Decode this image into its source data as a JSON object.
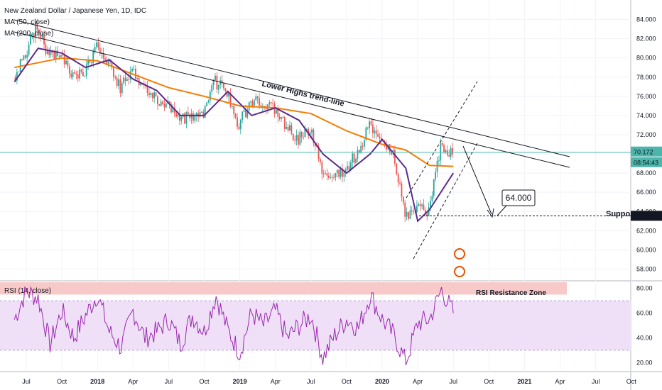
{
  "header": {
    "symbol_title": "New Zealand Dollar / Japanese Yen, 1D, IDC",
    "ma50_label": "MA (50, close)",
    "ma200_label": "MA (200, close)",
    "rsi_label": "RSI (14, close)"
  },
  "colors": {
    "candle_up": "#26a69a",
    "candle_down": "#ef5350",
    "ma50": "#5b2a8c",
    "ma200": "#f57c00",
    "rsi_line": "#9c27b0",
    "rsi_band": "#efe0f7",
    "resistance_zone": "#f8c9c9",
    "price_line": "#4db6ac"
  },
  "price_axis": {
    "ticks": [
      "84.000",
      "82.000",
      "80.000",
      "78.000",
      "76.000",
      "74.000",
      "72.000",
      "70.000",
      "68.000",
      "66.000",
      "64.000",
      "62.000",
      "60.000",
      "58.000"
    ],
    "current_price": "70.172",
    "countdown": "08:54:43",
    "support_price": "63.550"
  },
  "rsi_axis": {
    "ticks": [
      "80.00",
      "60.00",
      "40.00",
      "20.00"
    ]
  },
  "time_axis": {
    "labels": [
      "Jul",
      "Oct",
      "2018",
      "Apr",
      "Jul",
      "Oct",
      "2019",
      "Apr",
      "Jul",
      "Oct",
      "2020",
      "Apr",
      "Jul",
      "Oct",
      "2021",
      "Apr",
      "Jul",
      "Oct"
    ],
    "bold": [
      "2018",
      "2019",
      "2020",
      "2021"
    ]
  },
  "annotations": {
    "trendline_label": "Lower Highs trend-line",
    "support_label": "Support",
    "target_callout": "64.000",
    "rsi_zone_label": "RSI Resistance Zone"
  },
  "chart_data": {
    "type": "candlestick",
    "title": "New Zealand Dollar / Japanese Yen, 1D, IDC",
    "ylim": [
      57,
      85
    ],
    "rsi_ylim": [
      15,
      85
    ],
    "x_anchor_labels": [
      "Jul",
      "Oct",
      "2018",
      "Apr",
      "Jul",
      "Oct",
      "2019",
      "Apr",
      "Jul",
      "Oct",
      "2020",
      "Apr",
      "Jul",
      "Oct",
      "2021",
      "Apr",
      "Jul",
      "Oct"
    ],
    "price_path": [
      [
        "2017-06",
        78.0
      ],
      [
        "2017-07",
        80.5
      ],
      [
        "2017-08",
        83.5
      ],
      [
        "2017-09",
        80.0
      ],
      [
        "2017-10",
        80.5
      ],
      [
        "2017-11",
        78.0
      ],
      [
        "2017-12",
        78.5
      ],
      [
        "2018-01",
        81.0
      ],
      [
        "2018-02",
        79.5
      ],
      [
        "2018-03",
        77.0
      ],
      [
        "2018-04",
        78.8
      ],
      [
        "2018-05",
        77.0
      ],
      [
        "2018-06",
        75.5
      ],
      [
        "2018-07",
        75.0
      ],
      [
        "2018-08",
        73.5
      ],
      [
        "2018-09",
        74.0
      ],
      [
        "2018-10",
        74.0
      ],
      [
        "2018-11",
        77.5
      ],
      [
        "2018-12",
        76.5
      ],
      [
        "2019-01",
        73.0
      ],
      [
        "2019-02",
        75.5
      ],
      [
        "2019-03",
        75.5
      ],
      [
        "2019-04",
        74.5
      ],
      [
        "2019-05",
        73.0
      ],
      [
        "2019-06",
        71.5
      ],
      [
        "2019-07",
        72.5
      ],
      [
        "2019-08",
        68.5
      ],
      [
        "2019-09",
        67.8
      ],
      [
        "2019-10",
        68.5
      ],
      [
        "2019-11",
        70.0
      ],
      [
        "2019-12",
        73.0
      ],
      [
        "2020-01",
        71.5
      ],
      [
        "2020-02",
        70.5
      ],
      [
        "2020-03",
        63.5
      ],
      [
        "2020-04",
        64.5
      ],
      [
        "2020-05",
        64.0
      ],
      [
        "2020-06",
        71.0
      ],
      [
        "2020-07",
        70.172
      ]
    ],
    "ma200_path": [
      [
        "2017-06",
        79.0
      ],
      [
        "2017-10",
        80.0
      ],
      [
        "2018-01",
        79.7
      ],
      [
        "2018-04",
        78.3
      ],
      [
        "2018-07",
        76.9
      ],
      [
        "2018-10",
        76.0
      ],
      [
        "2019-01",
        75.0
      ],
      [
        "2019-04",
        74.8
      ],
      [
        "2019-07",
        74.2
      ],
      [
        "2019-10",
        72.4
      ],
      [
        "2020-01",
        71.0
      ],
      [
        "2020-03",
        70.4
      ],
      [
        "2020-05",
        68.8
      ],
      [
        "2020-07",
        68.7
      ]
    ],
    "ma50_path": [
      [
        "2017-06",
        77.5
      ],
      [
        "2017-08",
        81.0
      ],
      [
        "2017-10",
        80.5
      ],
      [
        "2017-12",
        79.0
      ],
      [
        "2018-02",
        79.8
      ],
      [
        "2018-04",
        77.8
      ],
      [
        "2018-06",
        76.6
      ],
      [
        "2018-08",
        74.0
      ],
      [
        "2018-10",
        74.0
      ],
      [
        "2018-12",
        76.5
      ],
      [
        "2019-02",
        74.0
      ],
      [
        "2019-04",
        74.8
      ],
      [
        "2019-06",
        73.5
      ],
      [
        "2019-08",
        70.0
      ],
      [
        "2019-10",
        68.0
      ],
      [
        "2019-12",
        70.0
      ],
      [
        "2020-01",
        71.5
      ],
      [
        "2020-03",
        68.5
      ],
      [
        "2020-04",
        63.0
      ],
      [
        "2020-05",
        64.2
      ],
      [
        "2020-07",
        68.0
      ]
    ],
    "rsi_path": [
      [
        "2017-06",
        55
      ],
      [
        "2017-07",
        78
      ],
      [
        "2017-08",
        72
      ],
      [
        "2017-09",
        35
      ],
      [
        "2017-10",
        62
      ],
      [
        "2017-11",
        40
      ],
      [
        "2017-12",
        58
      ],
      [
        "2018-01",
        75
      ],
      [
        "2018-02",
        45
      ],
      [
        "2018-03",
        32
      ],
      [
        "2018-04",
        62
      ],
      [
        "2018-05",
        40
      ],
      [
        "2018-06",
        45
      ],
      [
        "2018-07",
        55
      ],
      [
        "2018-08",
        35
      ],
      [
        "2018-09",
        58
      ],
      [
        "2018-10",
        45
      ],
      [
        "2018-11",
        74
      ],
      [
        "2018-12",
        46
      ],
      [
        "2019-01",
        28
      ],
      [
        "2019-02",
        60
      ],
      [
        "2019-03",
        50
      ],
      [
        "2019-04",
        62
      ],
      [
        "2019-05",
        40
      ],
      [
        "2019-06",
        50
      ],
      [
        "2019-07",
        58
      ],
      [
        "2019-08",
        24
      ],
      [
        "2019-09",
        42
      ],
      [
        "2019-10",
        55
      ],
      [
        "2019-11",
        48
      ],
      [
        "2019-12",
        75
      ],
      [
        "2020-01",
        55
      ],
      [
        "2020-02",
        42
      ],
      [
        "2020-03",
        20
      ],
      [
        "2020-04",
        52
      ],
      [
        "2020-05",
        55
      ],
      [
        "2020-06",
        79
      ],
      [
        "2020-07",
        60
      ]
    ],
    "rsi_bands": {
      "upper": 70,
      "lower": 30
    },
    "rsi_resistance_zone": [
      75,
      85
    ],
    "current_price": 70.172,
    "support_level": 63.55,
    "target_level": 64.0
  }
}
